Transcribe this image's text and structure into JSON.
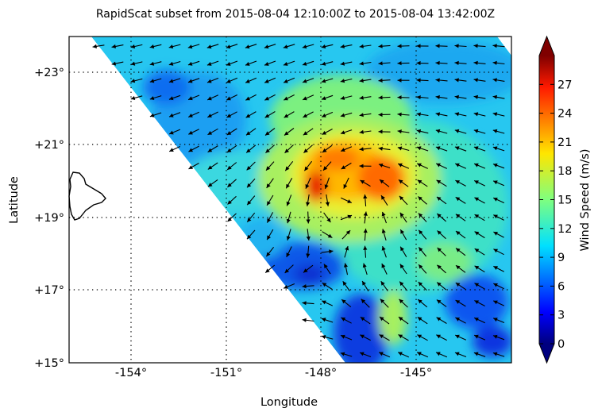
{
  "title": "RapidScat subset from 2015-08-04 12:10:00Z to 2015-08-04 13:42:00Z",
  "chart_data": {
    "type": "heatmap",
    "title": "RapidScat subset from 2015-08-04 12:10:00Z to 2015-08-04 13:42:00Z",
    "xlabel": "Longitude",
    "ylabel": "Latitude",
    "xlim": [
      -156,
      -142
    ],
    "ylim": [
      15,
      24
    ],
    "x_ticks": [
      {
        "value": -154,
        "label": "-154°"
      },
      {
        "value": -151,
        "label": "-151°"
      },
      {
        "value": -148,
        "label": "-148°"
      },
      {
        "value": -145,
        "label": "-145°"
      }
    ],
    "y_ticks": [
      {
        "value": 15,
        "label": "+15°"
      },
      {
        "value": 17,
        "label": "+17°"
      },
      {
        "value": 19,
        "label": "+19°"
      },
      {
        "value": 21,
        "label": "+21°"
      },
      {
        "value": 23,
        "label": "+23°"
      }
    ],
    "grid": "dotted",
    "colorbar": {
      "label": "Wind Speed (m/s)",
      "range": [
        0,
        30
      ],
      "ticks": [
        {
          "value": 0,
          "label": "0"
        },
        {
          "value": 3,
          "label": "3"
        },
        {
          "value": 6,
          "label": "6"
        },
        {
          "value": 9,
          "label": "9"
        },
        {
          "value": 12,
          "label": "12"
        },
        {
          "value": 15,
          "label": "15"
        },
        {
          "value": 18,
          "label": "18"
        },
        {
          "value": 21,
          "label": "21"
        },
        {
          "value": 24,
          "label": "24"
        },
        {
          "value": 27,
          "label": "27"
        }
      ],
      "colormap": "jet",
      "extend": "both"
    },
    "swath_edge": [
      {
        "lon": -155.3,
        "lat": 24.0
      },
      {
        "lon": -146.2,
        "lat": 15.0
      }
    ],
    "storm_center": {
      "lon": -146.3,
      "lat": 19.5
    },
    "wind_max_ms": 26,
    "island": "Hawaii (Big Island)"
  }
}
